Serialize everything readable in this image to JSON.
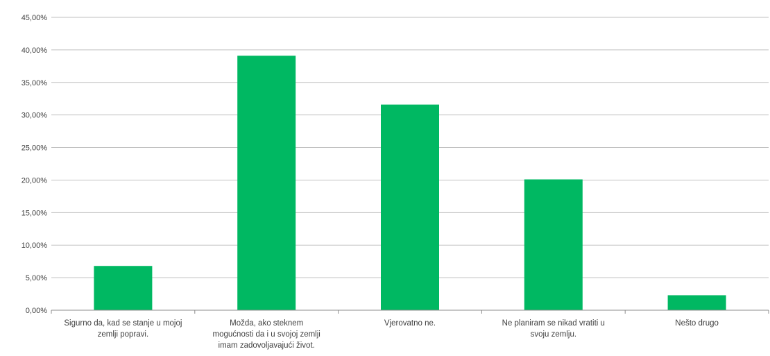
{
  "chart_data": {
    "type": "bar",
    "title": "",
    "xlabel": "",
    "ylabel": "",
    "ylim": [
      0,
      45
    ],
    "yticks": [
      0,
      5,
      10,
      15,
      20,
      25,
      30,
      35,
      40,
      45
    ],
    "ytick_labels": [
      "0,00%",
      "5,00%",
      "10,00%",
      "15,00%",
      "20,00%",
      "25,00%",
      "30,00%",
      "35,00%",
      "40,00%",
      "45,00%"
    ],
    "grid": true,
    "legend": "none",
    "bar_color": "#00b862",
    "categories": [
      [
        "Sigurno da, kad se stanje u mojoj",
        "zemlji popravi."
      ],
      [
        "Možda, ako steknem",
        "mogućnosti da i u svojoj zemlji",
        "imam zadovoljavajući život."
      ],
      [
        "Vjerovatno ne."
      ],
      [
        "Ne planiram se nikad vratiti u",
        "svoju zemlju."
      ],
      [
        "Nešto drugo"
      ]
    ],
    "values": [
      6.8,
      39.1,
      31.6,
      20.1,
      2.3
    ]
  }
}
